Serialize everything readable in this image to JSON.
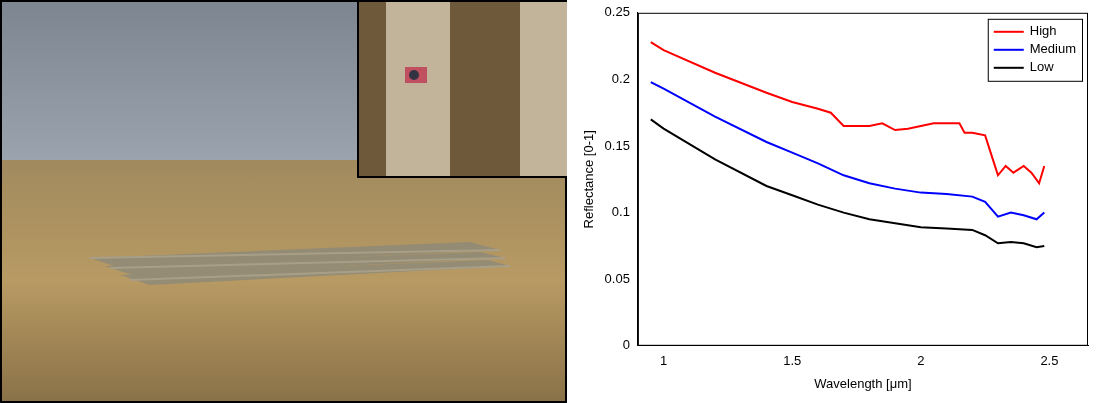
{
  "chart_data": {
    "type": "line",
    "x_label": "Wavelength [μm]",
    "y_label": "Reflectance [0-1]",
    "xlim": [
      0.9,
      2.65
    ],
    "xticks": [
      1,
      1.5,
      2,
      2.5
    ],
    "ylim": [
      0,
      0.25
    ],
    "yticks": [
      0,
      0.05,
      0.1,
      0.15,
      0.2,
      0.25
    ],
    "grid": false,
    "legend": "upper right",
    "series": [
      {
        "name": "High",
        "color": "#ff0000",
        "x": [
          0.95,
          1.0,
          1.2,
          1.4,
          1.5,
          1.6,
          1.65,
          1.7,
          1.8,
          1.85,
          1.9,
          1.95,
          2.0,
          2.05,
          2.1,
          2.15,
          2.17,
          2.2,
          2.25,
          2.28,
          2.3,
          2.33,
          2.36,
          2.4,
          2.43,
          2.46,
          2.48
        ],
        "values": [
          0.228,
          0.222,
          0.205,
          0.19,
          0.183,
          0.178,
          0.175,
          0.165,
          0.165,
          0.167,
          0.162,
          0.163,
          0.165,
          0.167,
          0.167,
          0.167,
          0.16,
          0.16,
          0.158,
          0.14,
          0.128,
          0.135,
          0.13,
          0.135,
          0.13,
          0.122,
          0.135
        ]
      },
      {
        "name": "Medium",
        "color": "#0000ff",
        "x": [
          0.95,
          1.0,
          1.2,
          1.4,
          1.5,
          1.6,
          1.7,
          1.8,
          1.9,
          2.0,
          2.1,
          2.2,
          2.25,
          2.3,
          2.35,
          2.4,
          2.45,
          2.48
        ],
        "values": [
          0.198,
          0.193,
          0.172,
          0.153,
          0.145,
          0.137,
          0.128,
          0.122,
          0.118,
          0.115,
          0.114,
          0.112,
          0.108,
          0.097,
          0.1,
          0.098,
          0.095,
          0.1
        ]
      },
      {
        "name": "Low",
        "color": "#000000",
        "x": [
          0.95,
          1.0,
          1.2,
          1.4,
          1.5,
          1.6,
          1.7,
          1.8,
          1.9,
          2.0,
          2.1,
          2.2,
          2.25,
          2.3,
          2.35,
          2.4,
          2.45,
          2.48
        ],
        "values": [
          0.17,
          0.163,
          0.14,
          0.12,
          0.113,
          0.106,
          0.1,
          0.095,
          0.092,
          0.089,
          0.088,
          0.087,
          0.083,
          0.077,
          0.078,
          0.077,
          0.074,
          0.075
        ]
      }
    ]
  }
}
